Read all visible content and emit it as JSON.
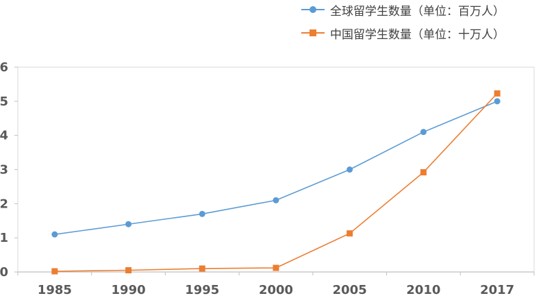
{
  "chart_data": {
    "type": "line",
    "categories": [
      "1985",
      "1990",
      "1995",
      "2000",
      "2005",
      "2010",
      "2017"
    ],
    "ylim": [
      0,
      6
    ],
    "yticks": [
      "0",
      "1",
      "2",
      "3",
      "4",
      "5",
      "6"
    ],
    "grid": false,
    "legend_position": "top-right",
    "series": [
      {
        "name": "全球留学生数量（单位：百万人）",
        "values": [
          1.1,
          1.4,
          1.7,
          2.1,
          3.0,
          4.1,
          5.0
        ],
        "color": "#5b9bd5",
        "marker": "circle"
      },
      {
        "name": "中国留学生数量（单位：十万人）",
        "values": [
          0.02,
          0.05,
          0.1,
          0.12,
          1.13,
          2.92,
          5.23
        ],
        "color": "#ed7d31",
        "marker": "square"
      }
    ]
  }
}
